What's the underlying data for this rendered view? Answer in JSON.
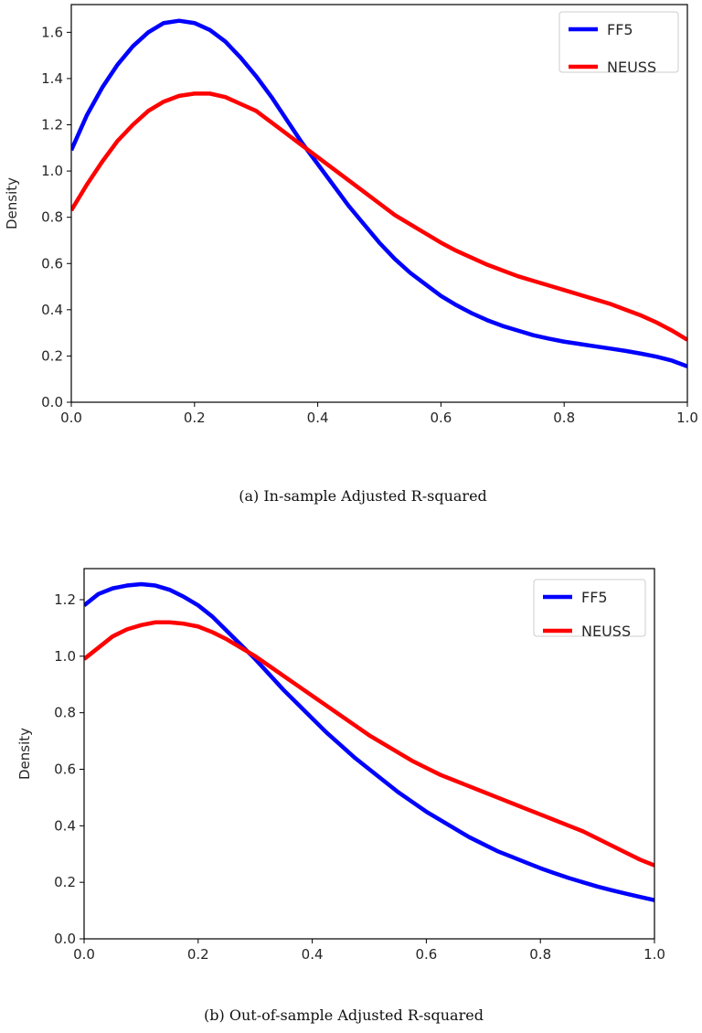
{
  "chart_data": [
    {
      "type": "line",
      "caption": "(a) In-sample Adjusted R-squared",
      "xlabel": "",
      "ylabel": "Density",
      "xlim": [
        0.0,
        1.0
      ],
      "ylim": [
        0.0,
        1.72
      ],
      "xticks": [
        "0.0",
        "0.2",
        "0.4",
        "0.6",
        "0.8",
        "1.0"
      ],
      "yticks": [
        "0.0",
        "0.2",
        "0.4",
        "0.6",
        "0.8",
        "1.0",
        "1.2",
        "1.4",
        "1.6"
      ],
      "legend_position": "top-right",
      "grid": false,
      "series": [
        {
          "name": "FF5",
          "color": "#0000ff",
          "x": [
            0.0,
            0.025,
            0.05,
            0.075,
            0.1,
            0.125,
            0.15,
            0.175,
            0.2,
            0.225,
            0.25,
            0.275,
            0.3,
            0.325,
            0.35,
            0.375,
            0.4,
            0.425,
            0.45,
            0.475,
            0.5,
            0.525,
            0.55,
            0.575,
            0.6,
            0.625,
            0.65,
            0.675,
            0.7,
            0.725,
            0.75,
            0.775,
            0.8,
            0.825,
            0.85,
            0.875,
            0.9,
            0.925,
            0.95,
            0.975,
            1.0
          ],
          "y": [
            1.09,
            1.24,
            1.36,
            1.46,
            1.54,
            1.6,
            1.64,
            1.65,
            1.64,
            1.61,
            1.56,
            1.49,
            1.41,
            1.32,
            1.22,
            1.12,
            1.03,
            0.94,
            0.85,
            0.77,
            0.69,
            0.62,
            0.56,
            0.51,
            0.46,
            0.42,
            0.385,
            0.355,
            0.33,
            0.31,
            0.29,
            0.275,
            0.262,
            0.252,
            0.242,
            0.232,
            0.222,
            0.21,
            0.197,
            0.18,
            0.155
          ]
        },
        {
          "name": "NEUSS",
          "color": "#ff0000",
          "x": [
            0.0,
            0.025,
            0.05,
            0.075,
            0.1,
            0.125,
            0.15,
            0.175,
            0.2,
            0.225,
            0.25,
            0.275,
            0.3,
            0.325,
            0.35,
            0.375,
            0.4,
            0.425,
            0.45,
            0.475,
            0.5,
            0.525,
            0.55,
            0.575,
            0.6,
            0.625,
            0.65,
            0.675,
            0.7,
            0.725,
            0.75,
            0.775,
            0.8,
            0.825,
            0.85,
            0.875,
            0.9,
            0.925,
            0.95,
            0.975,
            1.0
          ],
          "y": [
            0.83,
            0.94,
            1.04,
            1.13,
            1.2,
            1.26,
            1.3,
            1.325,
            1.335,
            1.335,
            1.32,
            1.29,
            1.26,
            1.21,
            1.16,
            1.11,
            1.06,
            1.01,
            0.96,
            0.91,
            0.86,
            0.81,
            0.77,
            0.73,
            0.69,
            0.655,
            0.625,
            0.595,
            0.57,
            0.545,
            0.525,
            0.505,
            0.485,
            0.465,
            0.445,
            0.425,
            0.4,
            0.375,
            0.345,
            0.31,
            0.27
          ]
        }
      ]
    },
    {
      "type": "line",
      "caption": "(b) Out-of-sample Adjusted R-squared",
      "xlabel": "",
      "ylabel": "Density",
      "xlim": [
        0.0,
        1.0
      ],
      "ylim": [
        0.0,
        1.31
      ],
      "xticks": [
        "0.0",
        "0.2",
        "0.4",
        "0.6",
        "0.8",
        "1.0"
      ],
      "yticks": [
        "0.0",
        "0.2",
        "0.4",
        "0.6",
        "0.8",
        "1.0",
        "1.2"
      ],
      "legend_position": "top-right",
      "grid": false,
      "series": [
        {
          "name": "FF5",
          "color": "#0000ff",
          "x": [
            0.0,
            0.025,
            0.05,
            0.075,
            0.1,
            0.125,
            0.15,
            0.175,
            0.2,
            0.225,
            0.25,
            0.275,
            0.3,
            0.325,
            0.35,
            0.375,
            0.4,
            0.425,
            0.45,
            0.475,
            0.5,
            0.525,
            0.55,
            0.575,
            0.6,
            0.625,
            0.65,
            0.675,
            0.7,
            0.725,
            0.75,
            0.775,
            0.8,
            0.825,
            0.85,
            0.875,
            0.9,
            0.925,
            0.95,
            0.975,
            1.0
          ],
          "y": [
            1.18,
            1.22,
            1.24,
            1.25,
            1.255,
            1.25,
            1.235,
            1.21,
            1.18,
            1.14,
            1.09,
            1.04,
            0.99,
            0.935,
            0.88,
            0.83,
            0.78,
            0.73,
            0.685,
            0.64,
            0.6,
            0.56,
            0.52,
            0.485,
            0.45,
            0.42,
            0.39,
            0.36,
            0.335,
            0.31,
            0.29,
            0.27,
            0.25,
            0.232,
            0.215,
            0.2,
            0.185,
            0.172,
            0.16,
            0.148,
            0.137
          ]
        },
        {
          "name": "NEUSS",
          "color": "#ff0000",
          "x": [
            0.0,
            0.025,
            0.05,
            0.075,
            0.1,
            0.125,
            0.15,
            0.175,
            0.2,
            0.225,
            0.25,
            0.275,
            0.3,
            0.325,
            0.35,
            0.375,
            0.4,
            0.425,
            0.45,
            0.475,
            0.5,
            0.525,
            0.55,
            0.575,
            0.6,
            0.625,
            0.65,
            0.675,
            0.7,
            0.725,
            0.75,
            0.775,
            0.8,
            0.825,
            0.85,
            0.875,
            0.9,
            0.925,
            0.95,
            0.975,
            1.0
          ],
          "y": [
            0.99,
            1.03,
            1.07,
            1.095,
            1.11,
            1.12,
            1.12,
            1.115,
            1.105,
            1.085,
            1.06,
            1.03,
            1.0,
            0.965,
            0.93,
            0.895,
            0.86,
            0.825,
            0.79,
            0.755,
            0.72,
            0.69,
            0.66,
            0.63,
            0.605,
            0.58,
            0.56,
            0.54,
            0.52,
            0.5,
            0.48,
            0.46,
            0.44,
            0.42,
            0.4,
            0.38,
            0.355,
            0.33,
            0.305,
            0.28,
            0.26
          ]
        }
      ]
    }
  ]
}
